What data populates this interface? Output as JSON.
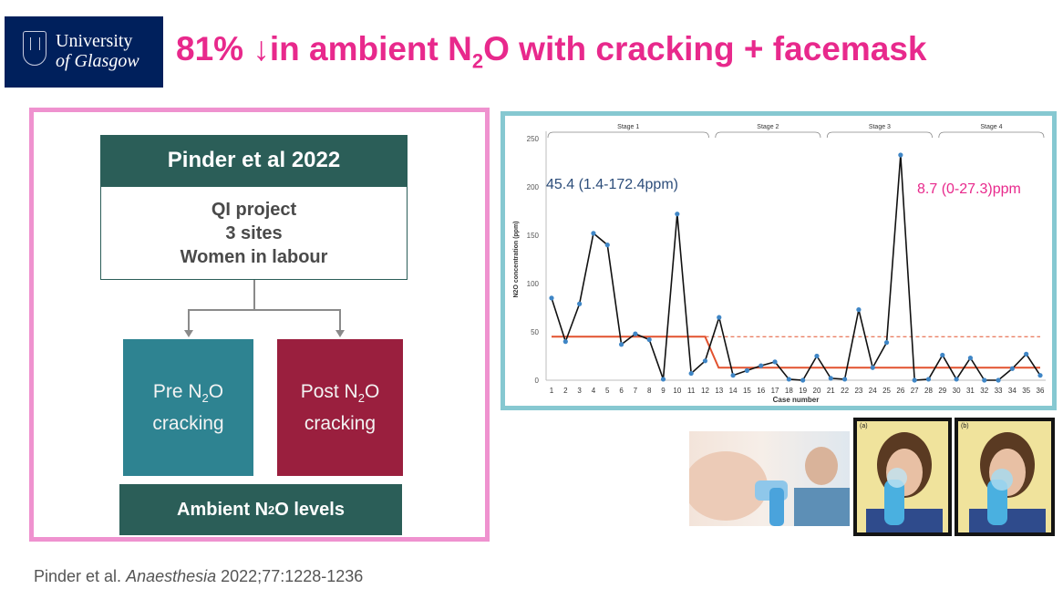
{
  "header": {
    "logo_line1": "University",
    "logo_line2": "of Glasgow",
    "title_pre": "81% ↓in ambient N",
    "title_sub": "2",
    "title_post": "O with cracking + facemask"
  },
  "flow": {
    "top_box": "Pinder et al 2022",
    "mid_lines": [
      "QI project",
      "3 sites",
      "Women in labour"
    ],
    "pre_line1": "Pre N",
    "pre_sub": "2",
    "pre_line1_end": "O",
    "pre_line2": "cracking",
    "post_line1": "Post N",
    "post_sub": "2",
    "post_line1_end": "O",
    "post_line2": "cracking",
    "bottom_pre": "Ambient N",
    "bottom_sub": "2",
    "bottom_post": "O levels"
  },
  "citation": {
    "authors": "Pinder et al. ",
    "journal": "Anaesthesia",
    "details": " 2022;77:1228-1236"
  },
  "photos": {
    "label_a": "(a)",
    "label_b": "(b)"
  },
  "chart_data": {
    "type": "line",
    "ylabel": "N2O concentration (ppm)",
    "xlabel": "Case number",
    "ylim": [
      0,
      250
    ],
    "yticks": [
      0,
      50,
      100,
      150,
      200,
      250
    ],
    "x": [
      1,
      2,
      3,
      4,
      5,
      6,
      7,
      8,
      9,
      10,
      11,
      12,
      13,
      14,
      15,
      16,
      17,
      18,
      19,
      20,
      21,
      22,
      23,
      24,
      25,
      26,
      27,
      28,
      29,
      30,
      31,
      32,
      33,
      34,
      35,
      36
    ],
    "values": [
      85,
      40,
      79,
      152,
      140,
      37,
      48,
      42,
      1,
      172,
      7,
      20,
      65,
      5,
      10,
      15,
      19,
      1,
      0,
      25,
      2,
      1,
      73,
      13,
      39,
      233,
      0,
      1,
      26,
      1,
      23,
      0,
      0,
      12,
      27,
      5
    ],
    "stages": [
      {
        "label": "Stage 1",
        "from": 1,
        "to": 12
      },
      {
        "label": "Stage 2",
        "from": 13,
        "to": 20
      },
      {
        "label": "Stage 3",
        "from": 21,
        "to": 28
      },
      {
        "label": "Stage 4",
        "from": 29,
        "to": 36
      }
    ],
    "median_line": [
      {
        "from": 1,
        "to": 12,
        "value": 45
      },
      {
        "from": 13,
        "to": 36,
        "value": 13
      }
    ],
    "dashed_lines": [
      {
        "from": 12,
        "to": 36,
        "value": 45
      },
      {
        "from": 13,
        "to": 36,
        "value": 13
      }
    ],
    "annotation_pre": "45.4 (1.4-172.4ppm)",
    "annotation_post": "8.7 (0-27.3)ppm",
    "colors": {
      "line": "#111111",
      "points": "#3f86c6",
      "median": "#e2522f",
      "annotation_pre": "#2c4d7a",
      "annotation_post": "#e8298c"
    }
  }
}
